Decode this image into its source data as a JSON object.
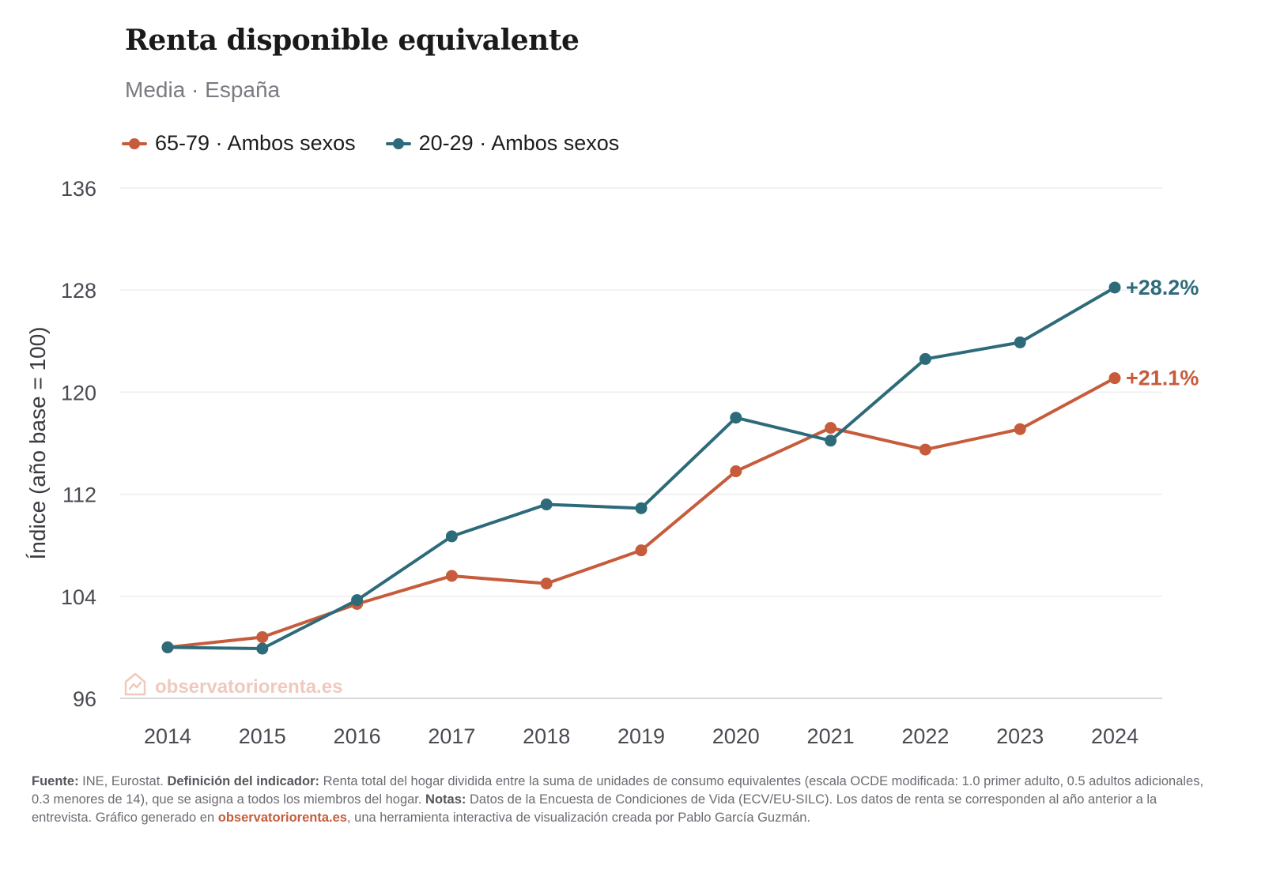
{
  "header": {
    "title": "Renta disponible equivalente",
    "subtitle": "Media · España"
  },
  "legend": [
    {
      "label": "65-79 · Ambos sexos",
      "color": "#c65c3b"
    },
    {
      "label": "20-29 · Ambos sexos",
      "color": "#2e6b7a"
    }
  ],
  "watermark": {
    "text": "observatoriorenta.es",
    "icon": "house-chart-icon"
  },
  "chart_data": {
    "type": "line",
    "title": "Renta disponible equivalente",
    "subtitle": "Media · España",
    "xlabel": "",
    "ylabel": "Índice (año base = 100)",
    "x": [
      2014,
      2015,
      2016,
      2017,
      2018,
      2019,
      2020,
      2021,
      2022,
      2023,
      2024
    ],
    "ylim": [
      96,
      136
    ],
    "yticks": [
      96,
      104,
      112,
      120,
      128,
      136
    ],
    "grid": true,
    "legend_position": "top-left",
    "series": [
      {
        "name": "65-79 · Ambos sexos",
        "color": "#c65c3b",
        "values": [
          100.0,
          100.8,
          103.4,
          105.6,
          105.0,
          107.6,
          113.8,
          117.2,
          115.5,
          117.1,
          121.1
        ],
        "end_label": "+21.1%"
      },
      {
        "name": "20-29 · Ambos sexos",
        "color": "#2e6b7a",
        "values": [
          100.0,
          99.9,
          103.7,
          108.7,
          111.2,
          110.9,
          118.0,
          116.2,
          122.6,
          123.9,
          128.2
        ],
        "end_label": "+28.2%"
      }
    ]
  },
  "footer": {
    "source_label": "Fuente:",
    "source_text": " INE, Eurostat. ",
    "definition_label": "Definición del indicador:",
    "definition_text": " Renta total del hogar dividida entre la suma de unidades de consumo equivalentes (escala OCDE modificada: 1.0 primer adulto, 0.5 adultos adicionales, 0.3 menores de 14), que se asigna a todos los miembros del hogar. ",
    "notes_label": "Notas:",
    "notes_text": " Datos de la Encuesta de Condiciones de Vida (ECV/EU-SILC). Los datos de renta se corresponden al año anterior a la entrevista. Gráfico generado en ",
    "link_text": "observatoriorenta.es",
    "closing_text": ", una herramienta interactiva de visualización creada por Pablo García Guzmán."
  }
}
